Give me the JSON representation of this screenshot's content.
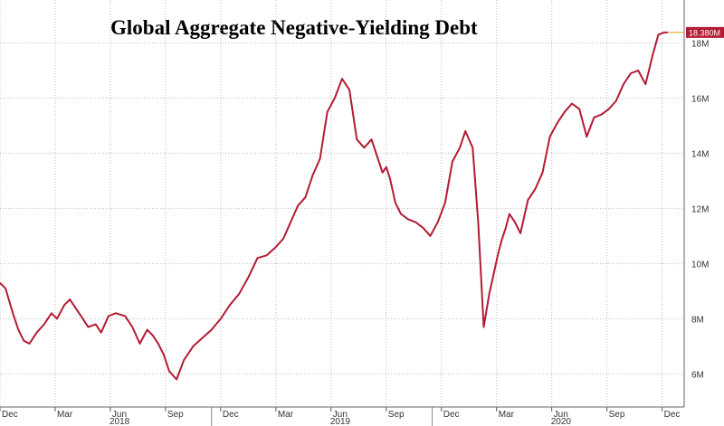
{
  "chart_data": {
    "type": "line",
    "title": "Global Aggregate Negative-Yielding Debt",
    "xlabel": "",
    "ylabel": "",
    "ylim": [
      4.8,
      18.9
    ],
    "y_ticks": [
      {
        "value": 6,
        "label": "6M"
      },
      {
        "value": 8,
        "label": "8M"
      },
      {
        "value": 10,
        "label": "10M"
      },
      {
        "value": 12,
        "label": "12M"
      },
      {
        "value": 14,
        "label": "14M"
      },
      {
        "value": 16,
        "label": "16M"
      },
      {
        "value": 18,
        "label": "18M"
      }
    ],
    "x_ticks": [
      {
        "m": 0,
        "label": "Dec"
      },
      {
        "m": 3,
        "label": "Mar"
      },
      {
        "m": 6,
        "label": "Jun"
      },
      {
        "m": 9,
        "label": "Sep"
      },
      {
        "m": 12,
        "label": "Dec"
      },
      {
        "m": 15,
        "label": "Mar"
      },
      {
        "m": 18,
        "label": "Jun"
      },
      {
        "m": 21,
        "label": "Sep"
      },
      {
        "m": 24,
        "label": "Dec"
      },
      {
        "m": 27,
        "label": "Mar"
      },
      {
        "m": 30,
        "label": "Jun"
      },
      {
        "m": 33,
        "label": "Sep"
      },
      {
        "m": 36,
        "label": "Dec"
      }
    ],
    "years": [
      {
        "m": 6.5,
        "label": "2018"
      },
      {
        "m": 18.5,
        "label": "2019"
      },
      {
        "m": 30.5,
        "label": "2020"
      }
    ],
    "last_value_label": "18.380M",
    "grid": true,
    "colors": {
      "line": "#b31b34",
      "grid": "#bbbbbb",
      "label_bg": "#b31b34"
    },
    "series": [
      {
        "x": [
          0,
          0.3,
          0.7,
          1,
          1.3,
          1.6,
          2,
          2.4,
          2.8,
          3.1,
          3.5,
          3.8,
          4.1,
          4.5,
          4.8,
          5.2,
          5.5,
          5.9,
          6.3,
          6.8,
          7.2,
          7.6,
          8,
          8.3,
          8.6,
          8.9,
          9.2,
          9.6,
          10,
          10.5,
          11,
          11.5,
          12,
          12.5,
          13,
          13.5,
          14,
          14.5,
          15,
          15.4,
          15.8,
          16.2,
          16.6,
          17,
          17.4,
          17.8,
          18.2,
          18.6,
          19,
          19.4,
          19.8,
          20.2,
          20.5,
          20.8,
          21,
          21.2,
          21.5,
          21.8,
          22.2,
          22.6,
          23,
          23.4,
          23.8,
          24.2,
          24.6,
          25,
          25.3,
          25.7,
          26,
          26.3,
          26.6,
          26.9,
          27.1,
          27.3,
          27.5,
          27.7,
          28,
          28.3,
          28.7,
          29.1,
          29.5,
          29.9,
          30.3,
          30.7,
          31.1,
          31.5,
          31.9,
          32.3,
          32.7,
          33.1,
          33.5,
          33.9,
          34.3,
          34.7,
          35.1,
          35.5,
          35.8,
          36.1,
          36.3
        ],
        "values": [
          9.3,
          9.1,
          8.2,
          7.6,
          7.2,
          7.1,
          7.5,
          7.8,
          8.2,
          8.0,
          8.5,
          8.7,
          8.4,
          8.0,
          7.7,
          7.8,
          7.5,
          8.1,
          8.2,
          8.1,
          7.7,
          7.1,
          7.6,
          7.4,
          7.1,
          6.7,
          6.1,
          5.8,
          6.5,
          7.0,
          7.3,
          7.6,
          8.0,
          8.5,
          8.9,
          9.5,
          10.2,
          10.3,
          10.6,
          10.9,
          11.5,
          12.1,
          12.4,
          13.2,
          13.8,
          15.5,
          16.0,
          16.7,
          16.3,
          14.5,
          14.2,
          14.5,
          13.9,
          13.3,
          13.5,
          13.1,
          12.2,
          11.8,
          11.6,
          11.5,
          11.3,
          11.0,
          11.5,
          12.2,
          13.7,
          14.2,
          14.8,
          14.2,
          11.5,
          7.7,
          8.9,
          9.8,
          10.4,
          10.9,
          11.3,
          11.8,
          11.5,
          11.1,
          12.3,
          12.7,
          13.3,
          14.6,
          15.1,
          15.5,
          15.8,
          15.6,
          14.6,
          15.3,
          15.4,
          15.6,
          15.9,
          16.5,
          16.9,
          17.0,
          16.5,
          17.6,
          18.3,
          18.38,
          18.38
        ]
      }
    ]
  }
}
